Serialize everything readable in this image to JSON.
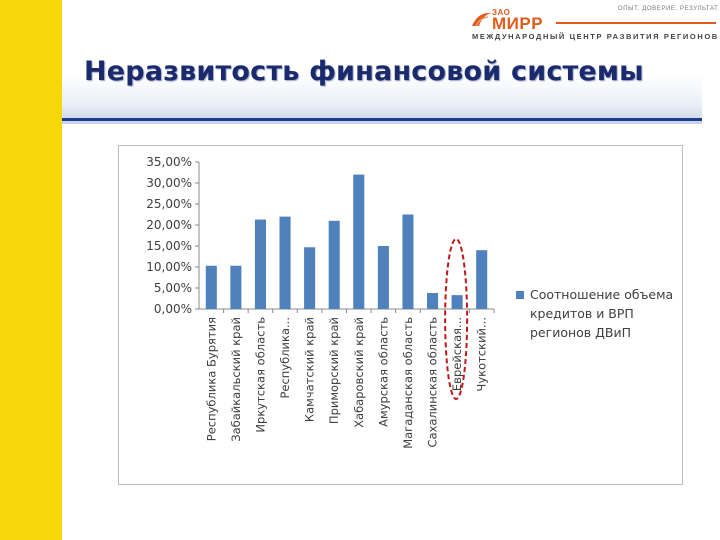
{
  "slide": {
    "title": "Неразвитость финансовой системы"
  },
  "logo": {
    "tagline": "ОПЫТ. ДОВЕРИЕ. РЕЗУЛЬТАТ",
    "prefix": "ЗАО",
    "name": "МИРР",
    "subtitle": "МЕЖДУНАРОДНЫЙ ЦЕНТР РАЗВИТИЯ РЕГИОНОВ",
    "accent": "#e05a1c"
  },
  "chart_data": {
    "type": "bar",
    "categories": [
      "Республика Бурятия",
      "Забайкальский край",
      "Иркутская область",
      "Республика...",
      "Камчатский край",
      "Приморский край",
      "Хабаровский край",
      "Амурская область",
      "Магаданская область",
      "Сахалинская область",
      "Еврейская...",
      "Чукотский..."
    ],
    "series": [
      {
        "name": "Соотношение объема кредитов и ВРП регионов ДВиП",
        "values": [
          10.3,
          10.3,
          21.3,
          22.0,
          14.7,
          21.0,
          32.0,
          15.0,
          22.5,
          3.8,
          3.3,
          14.0
        ],
        "color": "#4f81bd"
      }
    ],
    "legend_lines": [
      "Соотношение объема",
      "кредитов и ВРП",
      "регионов ДВиП"
    ],
    "legend_position": "right",
    "ylim": [
      0,
      35
    ],
    "yticks": [
      "0,00%",
      "5,00%",
      "10,00%",
      "15,00%",
      "20,00%",
      "25,00%",
      "30,00%",
      "35,00%"
    ],
    "highlighted_category": "Еврейская...",
    "highlight_color": "#c0171b",
    "grid": false
  }
}
